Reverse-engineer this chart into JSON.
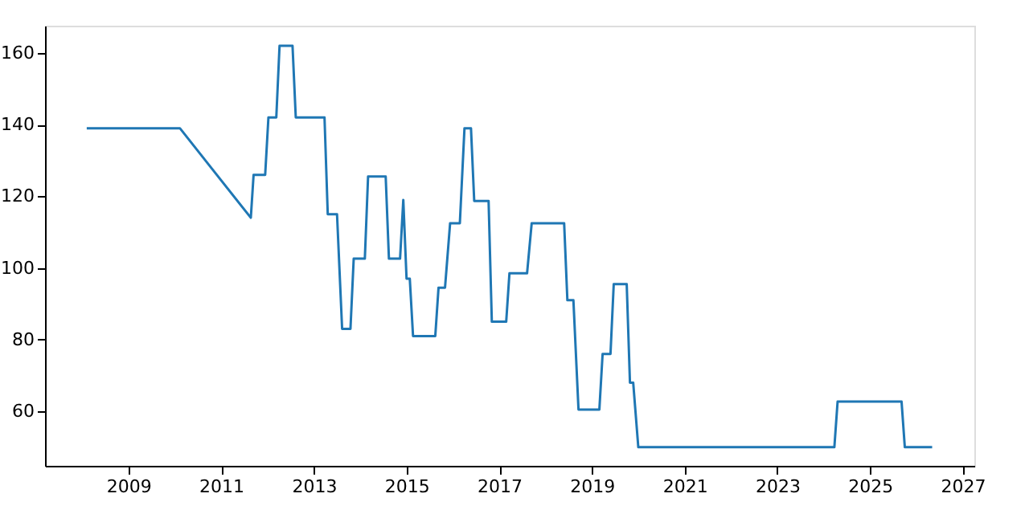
{
  "chart_data": {
    "type": "line",
    "x": [
      2008.1,
      2010.11,
      2011.64,
      2011.7,
      2011.95,
      2012.02,
      2012.19,
      2012.26,
      2012.54,
      2012.61,
      2013.23,
      2013.3,
      2013.5,
      2013.61,
      2013.79,
      2013.86,
      2014.1,
      2014.17,
      2014.55,
      2014.62,
      2014.86,
      2014.93,
      2015.0,
      2015.07,
      2015.14,
      2015.62,
      2015.69,
      2015.83,
      2015.94,
      2016.15,
      2016.25,
      2016.39,
      2016.46,
      2016.77,
      2016.84,
      2017.15,
      2017.22,
      2017.6,
      2017.7,
      2018.4,
      2018.47,
      2018.6,
      2018.71,
      2019.16,
      2019.23,
      2019.4,
      2019.47,
      2019.75,
      2019.82,
      2019.89,
      2020.0,
      2024.23,
      2024.3,
      2025.68,
      2025.75,
      2026.34
    ],
    "series": [
      {
        "color": "#1f77b4",
        "values": [
          139,
          139,
          114,
          126,
          126,
          142,
          142,
          162,
          162,
          142,
          142,
          115,
          115,
          83,
          83,
          102.6,
          102.6,
          125.5,
          125.5,
          102.6,
          102.6,
          119,
          97,
          97,
          81,
          81,
          94.5,
          94.5,
          112.5,
          112.5,
          139,
          139,
          118.7,
          118.7,
          85,
          85,
          98.5,
          98.5,
          112.5,
          112.5,
          91,
          91,
          60.5,
          60.5,
          76,
          76,
          95.5,
          95.5,
          68,
          68,
          50,
          50,
          62.7,
          62.7,
          50,
          50
        ]
      }
    ],
    "xlim": [
      2007.2,
      2027.25
    ],
    "xticks": [
      2009,
      2011,
      2013,
      2015,
      2017,
      2019,
      2021,
      2023,
      2025,
      2027
    ],
    "ylim": [
      44.8,
      167.6
    ],
    "yticks": [
      60,
      80,
      100,
      120,
      140,
      160
    ],
    "grid": false,
    "marker": "none",
    "line_style": "solid"
  }
}
